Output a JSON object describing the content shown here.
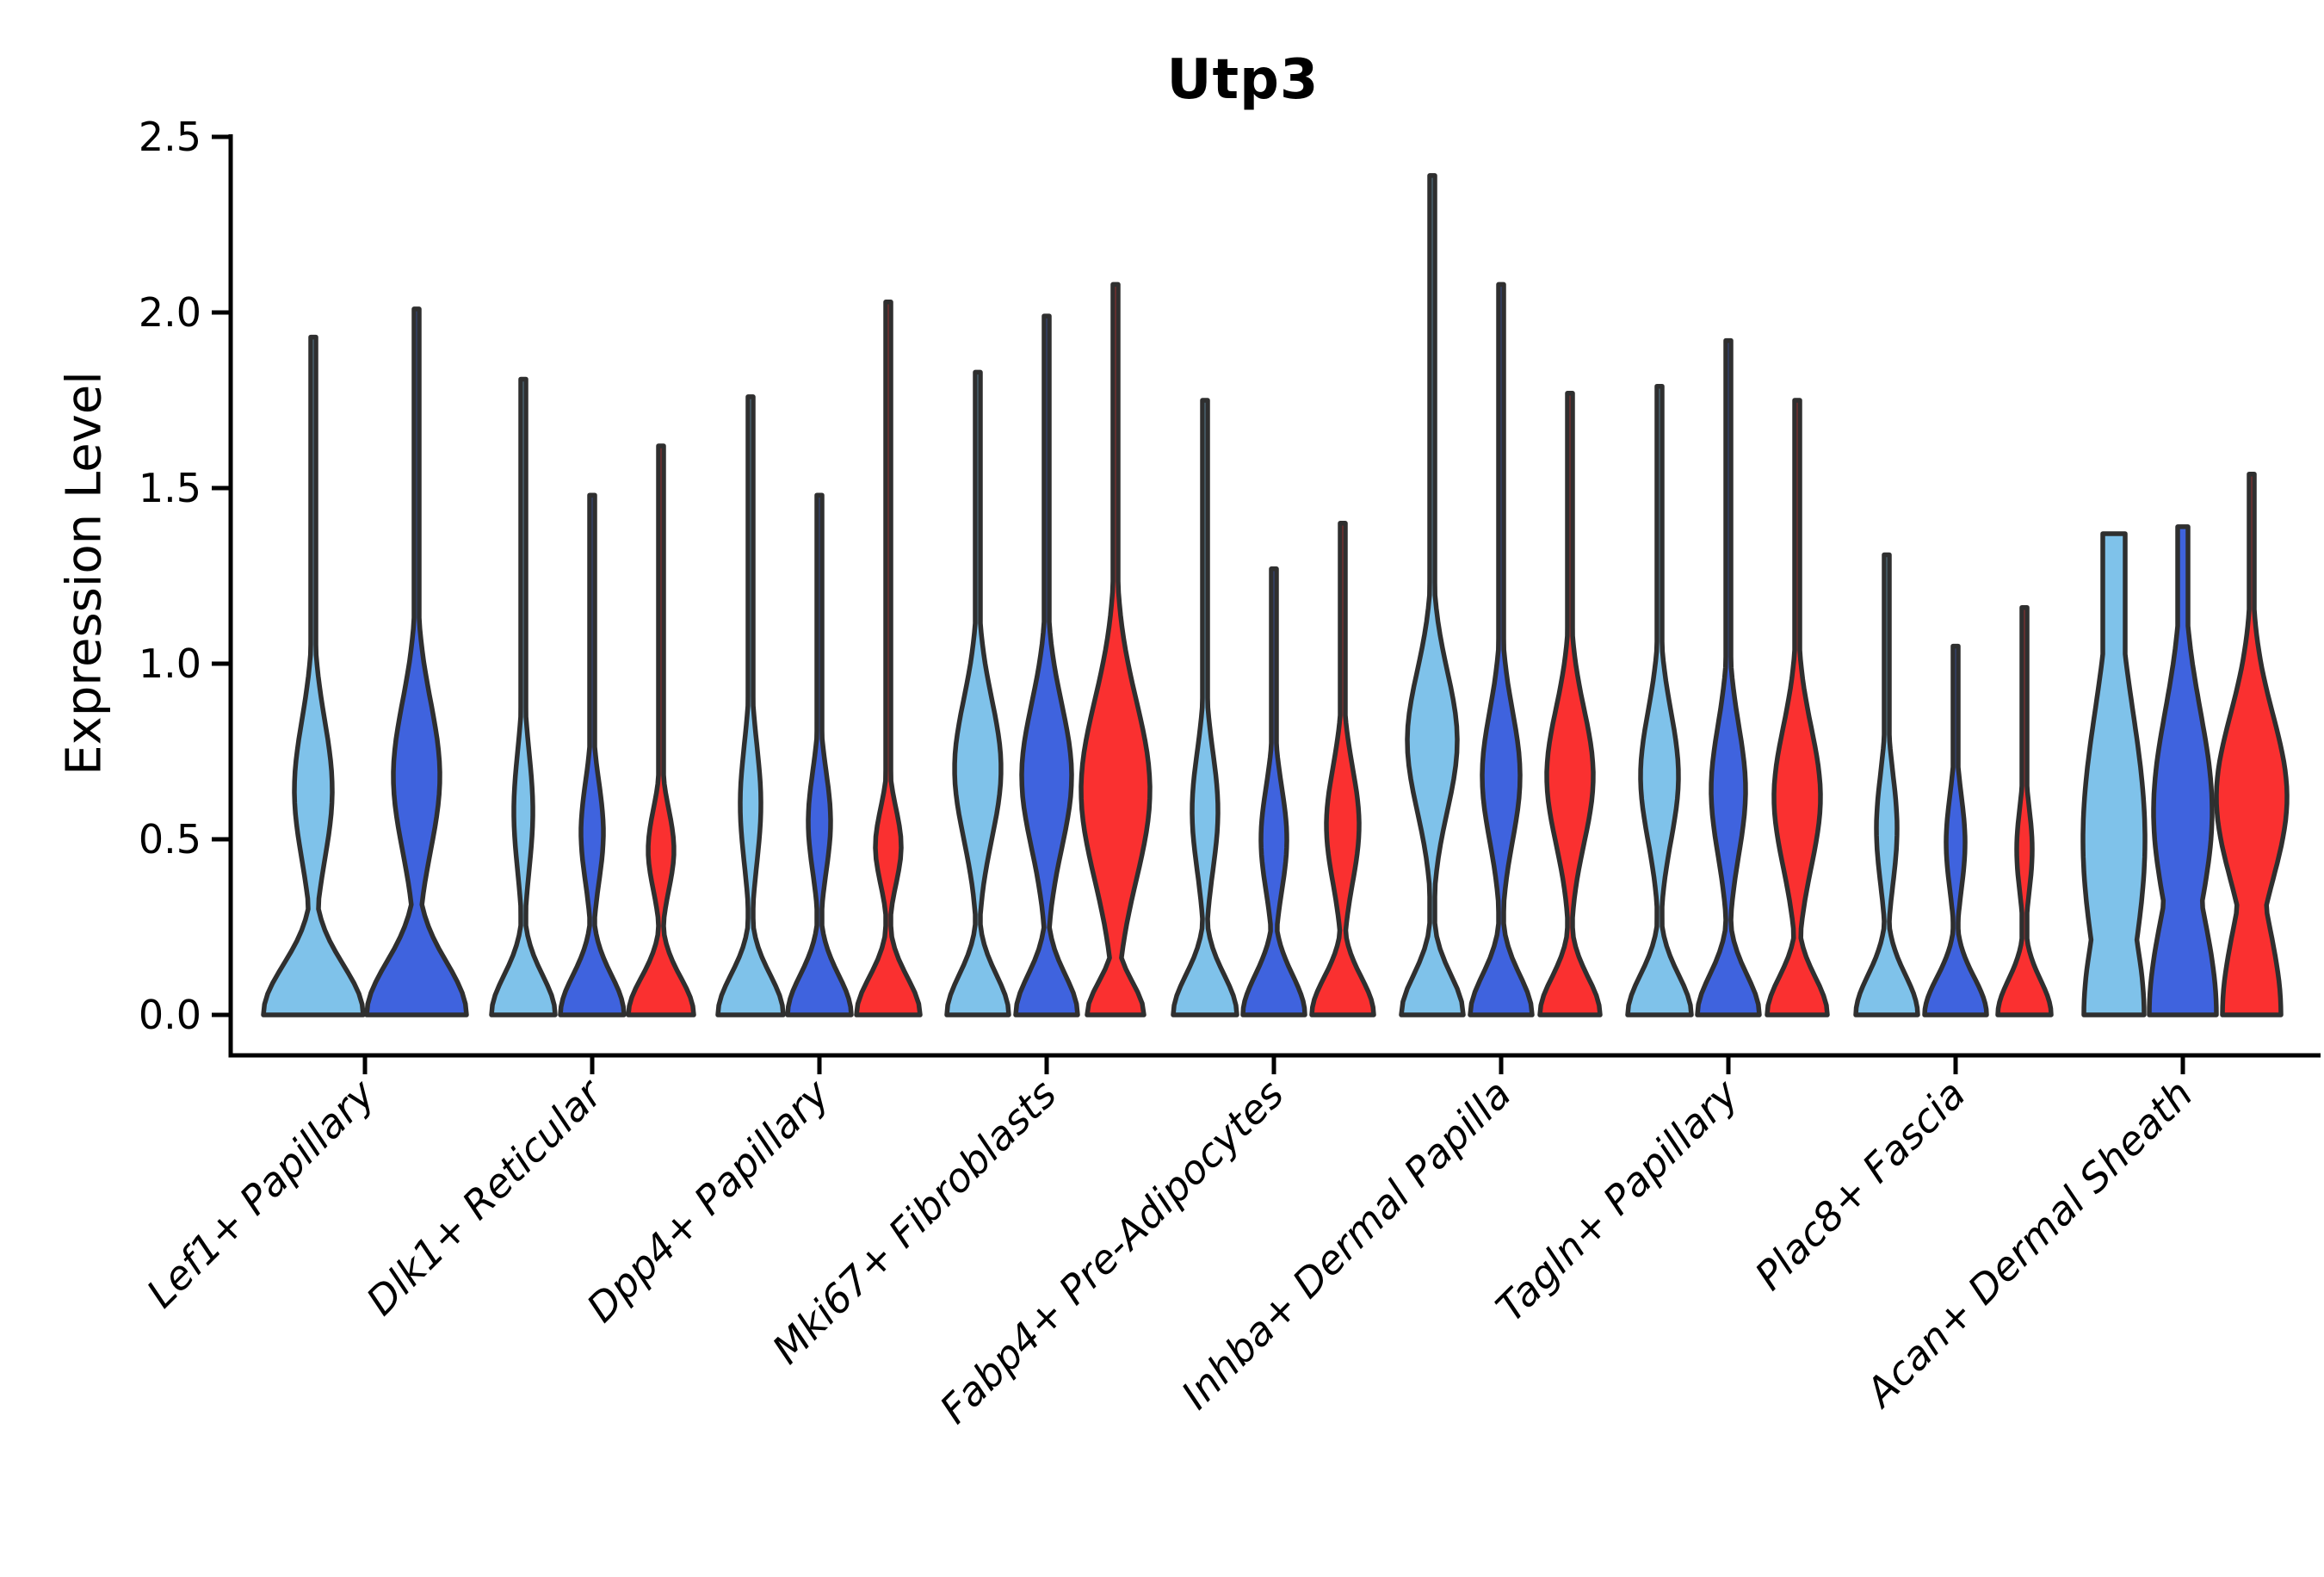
{
  "title": "Utp3",
  "axes": {
    "ylabel": "Expression Level",
    "y_ticks": [
      "0.0",
      "0.5",
      "1.0",
      "1.5",
      "2.0",
      "2.5"
    ],
    "y_min": 0.0,
    "y_max": 2.5
  },
  "colors": {
    "light_blue": "#7FC2EA",
    "dark_blue": "#3F63DE",
    "red": "#FA3030",
    "outline": "#2F2F2F",
    "axis": "#000000",
    "text": "#000000"
  },
  "chart_data": {
    "type": "violin",
    "title": "Utp3",
    "xlabel": "",
    "ylabel": "Expression Level",
    "ylim": [
      0.0,
      2.5
    ],
    "grid": false,
    "legend": "none",
    "categories": [
      "Lef1+ Papillary",
      "Dlk1+ Reticular",
      "Dpp4+ Papillary",
      "Mki67+ Fibroblasts",
      "Fabp4+ Pre-Adipocytes",
      "Inhba+ Dermal Papilla",
      "Tagln+ Papillary",
      "Plac8+ Fascia",
      "Acan+ Dermal Sheath"
    ],
    "series": [
      {
        "name": "light blue split",
        "fill": "#7FC2EA",
        "max_expression": [
          1.93,
          1.81,
          1.76,
          1.83,
          1.75,
          2.39,
          1.79,
          1.31,
          1.37
        ]
      },
      {
        "name": "dark blue split",
        "fill": "#3F63DE",
        "max_expression": [
          2.01,
          1.48,
          1.48,
          1.99,
          1.27,
          2.08,
          1.92,
          1.05,
          1.39
        ]
      },
      {
        "name": "red split",
        "fill": "#FA3030",
        "max_expression": [
          null,
          1.62,
          2.03,
          2.08,
          1.4,
          1.77,
          1.75,
          1.16,
          1.54
        ]
      }
    ],
    "violins": [
      {
        "cat": 0,
        "series": 0,
        "tip": 1.93,
        "base_hw": 58,
        "base_sigma": 0.2,
        "bulge_hw": 22,
        "bulge_center": 0.64,
        "bulge_sigma": 0.28,
        "tip_hw": 3
      },
      {
        "cat": 0,
        "series": 1,
        "tip": 2.01,
        "base_hw": 58,
        "base_sigma": 0.21,
        "bulge_hw": 27,
        "bulge_center": 0.68,
        "bulge_sigma": 0.3,
        "tip_hw": 3
      },
      {
        "cat": 1,
        "series": 0,
        "tip": 1.81,
        "base_hw": 37,
        "base_sigma": 0.16,
        "bulge_hw": 11,
        "bulge_center": 0.58,
        "bulge_sigma": 0.24,
        "tip_hw": 3
      },
      {
        "cat": 1,
        "series": 1,
        "tip": 1.48,
        "base_hw": 37,
        "base_sigma": 0.16,
        "bulge_hw": 13,
        "bulge_center": 0.52,
        "bulge_sigma": 0.2,
        "tip_hw": 3
      },
      {
        "cat": 1,
        "series": 2,
        "tip": 1.62,
        "base_hw": 38,
        "base_sigma": 0.15,
        "bulge_hw": 15,
        "bulge_center": 0.47,
        "bulge_sigma": 0.16,
        "tip_hw": 3
      },
      {
        "cat": 2,
        "series": 0,
        "tip": 1.76,
        "base_hw": 38,
        "base_sigma": 0.16,
        "bulge_hw": 12,
        "bulge_center": 0.6,
        "bulge_sigma": 0.24,
        "tip_hw": 3
      },
      {
        "cat": 2,
        "series": 1,
        "tip": 1.48,
        "base_hw": 37,
        "base_sigma": 0.16,
        "bulge_hw": 13,
        "bulge_center": 0.55,
        "bulge_sigma": 0.2,
        "tip_hw": 3
      },
      {
        "cat": 2,
        "series": 2,
        "tip": 2.03,
        "base_hw": 37,
        "base_sigma": 0.15,
        "bulge_hw": 15,
        "bulge_center": 0.48,
        "bulge_sigma": 0.15,
        "tip_hw": 3
      },
      {
        "cat": 3,
        "series": 0,
        "tip": 1.83,
        "base_hw": 36,
        "base_sigma": 0.16,
        "bulge_hw": 27,
        "bulge_center": 0.7,
        "bulge_sigma": 0.28,
        "tip_hw": 3
      },
      {
        "cat": 3,
        "series": 1,
        "tip": 1.99,
        "base_hw": 36,
        "base_sigma": 0.16,
        "bulge_hw": 29,
        "bulge_center": 0.68,
        "bulge_sigma": 0.29,
        "tip_hw": 3
      },
      {
        "cat": 3,
        "series": 2,
        "tip": 2.08,
        "base_hw": 33,
        "base_sigma": 0.13,
        "bulge_hw": 40,
        "bulge_center": 0.64,
        "bulge_sigma": 0.36,
        "tip_hw": 3
      },
      {
        "cat": 4,
        "series": 0,
        "tip": 1.75,
        "base_hw": 37,
        "base_sigma": 0.16,
        "bulge_hw": 15,
        "bulge_center": 0.58,
        "bulge_sigma": 0.24,
        "tip_hw": 3
      },
      {
        "cat": 4,
        "series": 1,
        "tip": 1.27,
        "base_hw": 36,
        "base_sigma": 0.16,
        "bulge_hw": 15,
        "bulge_center": 0.5,
        "bulge_sigma": 0.21,
        "tip_hw": 3
      },
      {
        "cat": 4,
        "series": 2,
        "tip": 1.4,
        "base_hw": 36,
        "base_sigma": 0.15,
        "bulge_hw": 19,
        "bulge_center": 0.54,
        "bulge_sigma": 0.23,
        "tip_hw": 3
      },
      {
        "cat": 5,
        "series": 0,
        "tip": 2.39,
        "base_hw": 36,
        "base_sigma": 0.16,
        "bulge_hw": 29,
        "bulge_center": 0.78,
        "bulge_sigma": 0.28,
        "tip_hw": 3
      },
      {
        "cat": 5,
        "series": 1,
        "tip": 2.08,
        "base_hw": 36,
        "base_sigma": 0.16,
        "bulge_hw": 22,
        "bulge_center": 0.68,
        "bulge_sigma": 0.26,
        "tip_hw": 3
      },
      {
        "cat": 5,
        "series": 2,
        "tip": 1.77,
        "base_hw": 35,
        "base_sigma": 0.15,
        "bulge_hw": 27,
        "bulge_center": 0.68,
        "bulge_sigma": 0.27,
        "tip_hw": 3
      },
      {
        "cat": 6,
        "series": 0,
        "tip": 1.79,
        "base_hw": 37,
        "base_sigma": 0.16,
        "bulge_hw": 22,
        "bulge_center": 0.68,
        "bulge_sigma": 0.26,
        "tip_hw": 3
      },
      {
        "cat": 6,
        "series": 1,
        "tip": 1.92,
        "base_hw": 36,
        "base_sigma": 0.16,
        "bulge_hw": 20,
        "bulge_center": 0.64,
        "bulge_sigma": 0.26,
        "tip_hw": 3
      },
      {
        "cat": 6,
        "series": 2,
        "tip": 1.75,
        "base_hw": 35,
        "base_sigma": 0.15,
        "bulge_hw": 27,
        "bulge_center": 0.62,
        "bulge_sigma": 0.28,
        "tip_hw": 3
      },
      {
        "cat": 7,
        "series": 0,
        "tip": 1.31,
        "base_hw": 36,
        "base_sigma": 0.16,
        "bulge_hw": 12,
        "bulge_center": 0.53,
        "bulge_sigma": 0.22,
        "tip_hw": 3
      },
      {
        "cat": 7,
        "series": 1,
        "tip": 1.05,
        "base_hw": 36,
        "base_sigma": 0.15,
        "bulge_hw": 11,
        "bulge_center": 0.49,
        "bulge_sigma": 0.19,
        "tip_hw": 3
      },
      {
        "cat": 7,
        "series": 2,
        "tip": 1.16,
        "base_hw": 31,
        "base_sigma": 0.14,
        "bulge_hw": 9,
        "bulge_center": 0.47,
        "bulge_sigma": 0.17,
        "tip_hw": 3
      },
      {
        "cat": 8,
        "series": 0,
        "tip": 1.37,
        "base_hw": 35,
        "base_sigma": 0.4,
        "bulge_hw": 36,
        "bulge_center": 0.5,
        "bulge_sigma": 0.52,
        "tip_hw": 13
      },
      {
        "cat": 8,
        "series": 1,
        "tip": 1.39,
        "base_hw": 39,
        "base_sigma": 0.42,
        "bulge_hw": 34,
        "bulge_center": 0.58,
        "bulge_sigma": 0.4,
        "tip_hw": 6
      },
      {
        "cat": 8,
        "series": 2,
        "tip": 1.54,
        "base_hw": 34,
        "base_sigma": 0.36,
        "bulge_hw": 41,
        "bulge_center": 0.62,
        "bulge_sigma": 0.33,
        "tip_hw": 3
      }
    ]
  }
}
